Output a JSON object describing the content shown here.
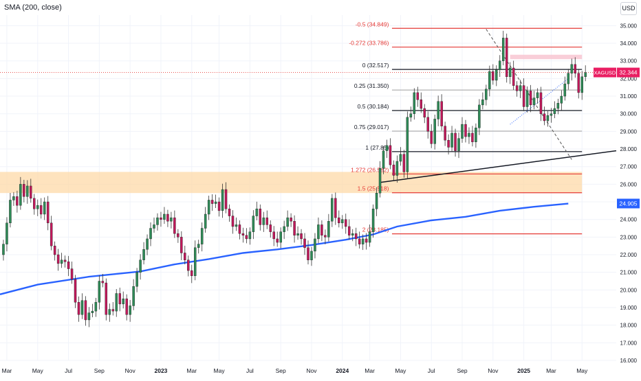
{
  "indicator": {
    "label": "SMA (200, close)"
  },
  "currency": "USD",
  "colors": {
    "up": "#2e8b57",
    "down": "#c2185b",
    "sma": "#2962ff",
    "fib_red": "#e53935",
    "fib_black": "#131722",
    "fib_gray": "#9e9e9e",
    "zone": "#fdd9a8",
    "pink_zone": "#f8c9d4",
    "price_tag": "#e91e63",
    "sma_tag": "#2962ff",
    "grid": "#f0f3fa"
  },
  "chart_data": {
    "type": "candlestick",
    "title": "",
    "ylim": [
      16.0,
      35.6
    ],
    "y_ticks": [
      "16.000",
      "17.000",
      "18.000",
      "19.000",
      "20.000",
      "21.000",
      "22.000",
      "23.000",
      "24.000",
      "25.000",
      "26.000",
      "27.000",
      "28.000",
      "29.000",
      "30.000",
      "31.000",
      "32.000",
      "33.000",
      "34.000",
      "35.000"
    ],
    "x_ticks": [
      {
        "label": "Mar",
        "week": 1
      },
      {
        "label": "May",
        "week": 10
      },
      {
        "label": "Jul",
        "week": 19
      },
      {
        "label": "Sep",
        "week": 28
      },
      {
        "label": "Nov",
        "week": 37
      },
      {
        "label": "2023",
        "week": 46
      },
      {
        "label": "Mar",
        "week": 55
      },
      {
        "label": "May",
        "week": 63
      },
      {
        "label": "Jul",
        "week": 72
      },
      {
        "label": "Sep",
        "week": 81
      },
      {
        "label": "Nov",
        "week": 90
      },
      {
        "label": "2024",
        "week": 99
      },
      {
        "label": "Mar",
        "week": 107
      },
      {
        "label": "May",
        "week": 116
      },
      {
        "label": "Jul",
        "week": 125
      },
      {
        "label": "Sep",
        "week": 134
      },
      {
        "label": "Nov",
        "week": 143
      },
      {
        "label": "2025",
        "week": 152
      },
      {
        "label": "Mar",
        "week": 160
      },
      {
        "label": "May",
        "week": 169
      }
    ],
    "x_bold": [
      "2023",
      "2024",
      "2025"
    ],
    "week_range": [
      -1,
      179
    ],
    "closes": [
      22.6,
      23.8,
      25.1,
      25.3,
      24.8,
      26.0,
      25.3,
      25.9,
      25.2,
      24.6,
      24.8,
      24.3,
      25.0,
      23.8,
      22.5,
      22.0,
      21.5,
      21.7,
      21.6,
      21.2,
      20.6,
      19.3,
      18.6,
      19.4,
      18.3,
      18.7,
      18.8,
      19.3,
      20.5,
      20.4,
      18.6,
      18.9,
      18.8,
      19.8,
      19.2,
      19.5,
      18.6,
      19.1,
      20.2,
      21.0,
      21.7,
      22.3,
      22.9,
      23.5,
      23.7,
      24.1,
      24.0,
      24.3,
      23.9,
      24.1,
      23.2,
      23.0,
      22.1,
      21.7,
      21.1,
      20.8,
      22.4,
      22.6,
      23.5,
      24.3,
      25.1,
      24.9,
      25.0,
      24.5,
      25.7,
      24.6,
      24.2,
      23.6,
      23.7,
      23.2,
      23.1,
      22.9,
      23.3,
      24.2,
      24.6,
      23.7,
      24.1,
      23.7,
      23.3,
      22.9,
      22.7,
      23.3,
      23.6,
      24.1,
      23.9,
      23.1,
      23.2,
      22.9,
      22.4,
      21.7,
      22.2,
      22.9,
      23.7,
      23.1,
      23.0,
      23.9,
      25.2,
      24.1,
      23.8,
      24.0,
      23.6,
      23.1,
      23.2,
      22.9,
      22.6,
      22.9,
      22.7,
      23.3,
      24.6,
      25.5,
      26.9,
      27.9,
      28.2,
      27.1,
      26.5,
      27.3,
      27.7,
      26.7,
      29.8,
      30.0,
      31.2,
      30.8,
      30.3,
      29.8,
      29.0,
      28.3,
      29.7,
      30.7,
      29.3,
      28.5,
      28.1,
      28.9,
      27.9,
      28.6,
      29.4,
      28.7,
      28.9,
      28.4,
      29.2,
      30.5,
      30.8,
      31.4,
      32.4,
      31.9,
      32.5,
      33.0,
      34.3,
      32.1,
      32.6,
      31.6,
      31.3,
      31.6,
      30.4,
      31.3,
      30.5,
      30.9,
      31.2,
      30.0,
      29.6,
      29.9,
      30.0,
      30.3,
      30.6,
      31.0,
      31.7,
      32.3,
      32.8,
      32.3,
      31.2,
      32.1,
      32.34
    ],
    "sma200_label": "SMA (200, close)",
    "sma200_points": [
      [
        -1,
        19.75
      ],
      [
        10,
        20.3
      ],
      [
        25,
        20.75
      ],
      [
        40,
        21.05
      ],
      [
        50,
        21.45
      ],
      [
        60,
        21.75
      ],
      [
        70,
        22.1
      ],
      [
        80,
        22.3
      ],
      [
        90,
        22.55
      ],
      [
        100,
        22.85
      ],
      [
        108,
        23.15
      ],
      [
        115,
        23.6
      ],
      [
        125,
        23.95
      ],
      [
        135,
        24.15
      ],
      [
        145,
        24.5
      ],
      [
        155,
        24.72
      ],
      [
        165,
        24.9
      ]
    ],
    "current_price": {
      "label": "XAGUSD",
      "value": "32.344"
    },
    "sma_value": "24.905",
    "fib_levels": [
      {
        "label": "-0.5 (34.849)",
        "value": 34.849,
        "style": "red"
      },
      {
        "label": "-0.272 (33.786)",
        "value": 33.786,
        "style": "red"
      },
      {
        "label": "0 (32.517)",
        "value": 32.517,
        "style": "black"
      },
      {
        "label": "0.25 (31.350)",
        "value": 31.35,
        "style": "gray"
      },
      {
        "label": "0.5 (30.184)",
        "value": 30.184,
        "style": "black"
      },
      {
        "label": "0.75 (29.017)",
        "value": 29.017,
        "style": "gray"
      },
      {
        "label": "1 (27.85)",
        "value": 27.85,
        "style": "black"
      },
      {
        "label": "1.272 (26.582)",
        "value": 26.582,
        "style": "red"
      },
      {
        "label": "1.5 (25.518)",
        "value": 25.518,
        "style": "red"
      },
      {
        "label": "2 (23.185)",
        "value": 23.185,
        "style": "red"
      }
    ],
    "support_zone": [
      25.5,
      26.7
    ],
    "resistance_zone": [
      33.1,
      33.35
    ]
  }
}
